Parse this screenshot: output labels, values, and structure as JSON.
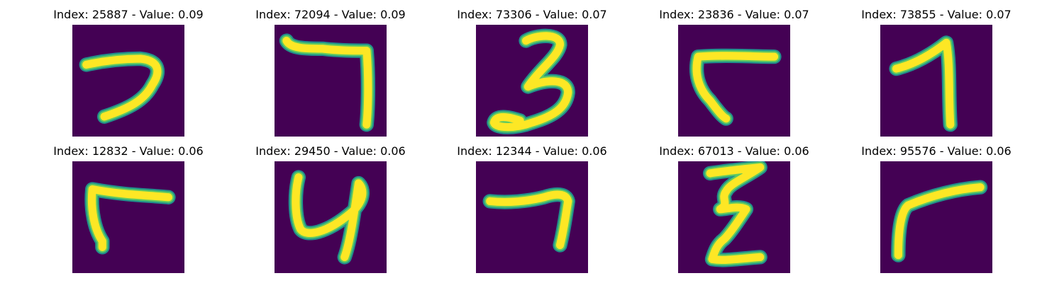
{
  "colors": {
    "background": "#440154",
    "stroke_core": "#fde725",
    "stroke_mid": "#5ec962",
    "stroke_edge": "#21918c"
  },
  "panels": [
    {
      "title": "Index: 25887 - Value: 0.09",
      "glyph": "digit-7-hook"
    },
    {
      "title": "Index: 72094 - Value: 0.09",
      "glyph": "digit-7"
    },
    {
      "title": "Index: 73306 - Value: 0.07",
      "glyph": "digit-3"
    },
    {
      "title": "Index: 23836 - Value: 0.07",
      "glyph": "digit-7-curl"
    },
    {
      "title": "Index: 73855 - Value: 0.07",
      "glyph": "digit-1"
    },
    {
      "title": "Index: 12832 - Value: 0.06",
      "glyph": "digit-7-angle"
    },
    {
      "title": "Index: 29450 - Value: 0.06",
      "glyph": "digit-4"
    },
    {
      "title": "Index: 12344 - Value: 0.06",
      "glyph": "digit-7-short"
    },
    {
      "title": "Index: 67013 - Value: 0.06",
      "glyph": "digit-2-z"
    },
    {
      "title": "Index: 95576 - Value: 0.06",
      "glyph": "digit-7-inverted"
    }
  ]
}
